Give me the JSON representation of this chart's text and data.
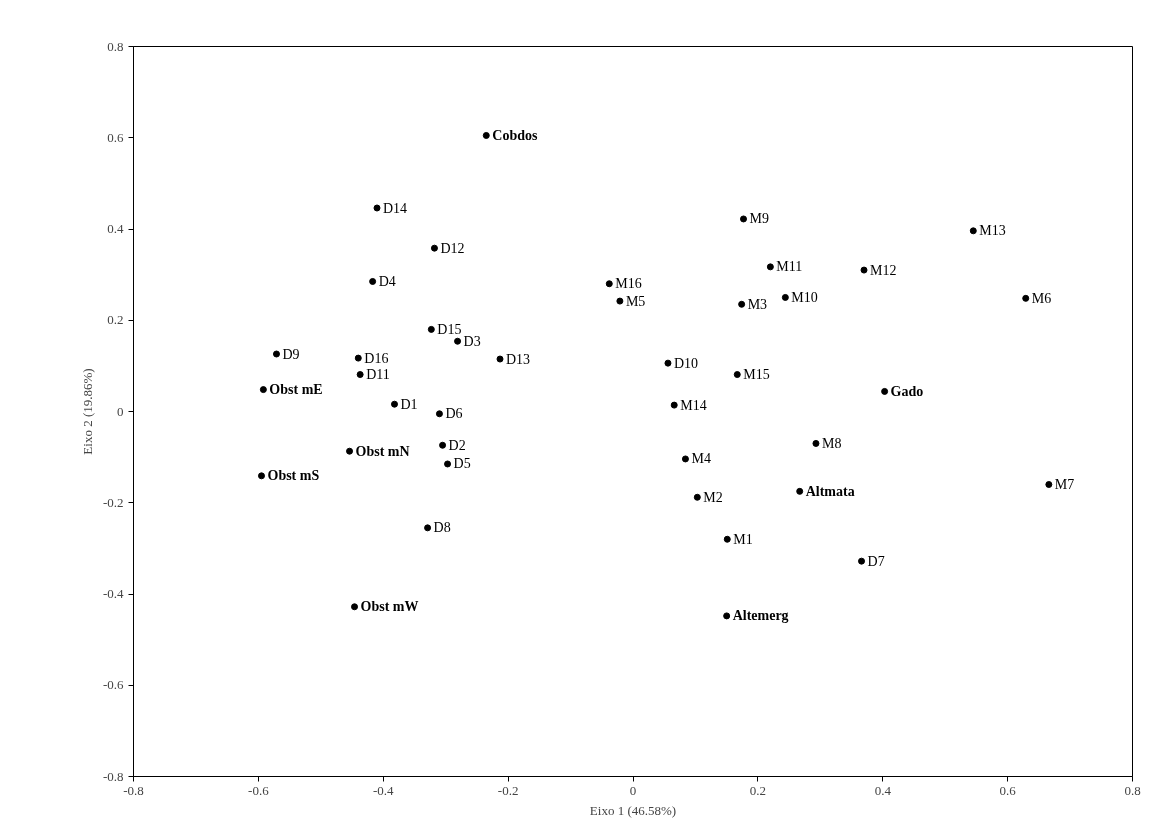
{
  "chart_data": {
    "type": "scatter",
    "xlabel": "Eixo 1 (46.58%)",
    "ylabel": "Eixo 2 (19.86%)",
    "marker": "circle",
    "grid": false,
    "xlim": [
      -0.8,
      0.8
    ],
    "xticks": [
      -0.8,
      -0.6,
      -0.4,
      -0.2,
      0,
      0.2,
      0.4,
      0.6,
      0.8
    ],
    "ylim": [
      -0.8,
      0.8
    ],
    "yticks": [
      -0.8,
      -0.6,
      -0.4,
      -0.2,
      0,
      0.2,
      0.4,
      0.6,
      0.8
    ],
    "series": [
      {
        "color": "#000000",
        "x": [
          -0.41,
          -0.318,
          -0.417,
          -0.323,
          -0.281,
          -0.571,
          -0.44,
          -0.437,
          -0.213,
          -0.382,
          -0.31,
          -0.305,
          -0.297,
          -0.329,
          0.056,
          0.366,
          -0.021,
          -0.038,
          0.177,
          0.22,
          0.174,
          0.244,
          0.37,
          0.545,
          0.629,
          0.167,
          0.066,
          0.084,
          0.103,
          0.293,
          0.151,
          0.666
        ],
        "values": [
          0.446,
          0.358,
          0.285,
          0.18,
          0.154,
          0.126,
          0.117,
          0.081,
          0.115,
          0.016,
          -0.005,
          -0.074,
          -0.115,
          -0.255,
          0.106,
          -0.328,
          0.242,
          0.28,
          0.422,
          0.317,
          0.235,
          0.25,
          0.31,
          0.396,
          0.248,
          0.081,
          0.014,
          -0.104,
          -0.188,
          -0.07,
          -0.28,
          -0.16
        ],
        "value_labels": [
          "D14",
          "D12",
          "D4",
          "D15",
          "D3",
          "D9",
          "D16",
          "D11",
          "D13",
          "D1",
          "D6",
          "D2",
          "D5",
          "D8",
          "D10",
          "D7",
          "M5",
          "M16",
          "M9",
          "M11",
          "M3",
          "M10",
          "M12",
          "M13",
          "M6",
          "M15",
          "M14",
          "M4",
          "M2",
          "M8",
          "M1",
          "M7"
        ]
      },
      {
        "color": "#000000",
        "x": [
          -0.235,
          0.403,
          -0.592,
          -0.454,
          -0.595,
          0.267,
          -0.446,
          0.15
        ],
        "values": [
          0.605,
          0.044,
          0.048,
          -0.087,
          -0.141,
          -0.175,
          -0.428,
          -0.448
        ],
        "value_labels": [
          "Cobdos",
          "Gado",
          "Obst mE",
          "Obst mN",
          "Obst mS",
          "Altmata",
          "Obst mW",
          "Altemerg"
        ]
      }
    ]
  }
}
